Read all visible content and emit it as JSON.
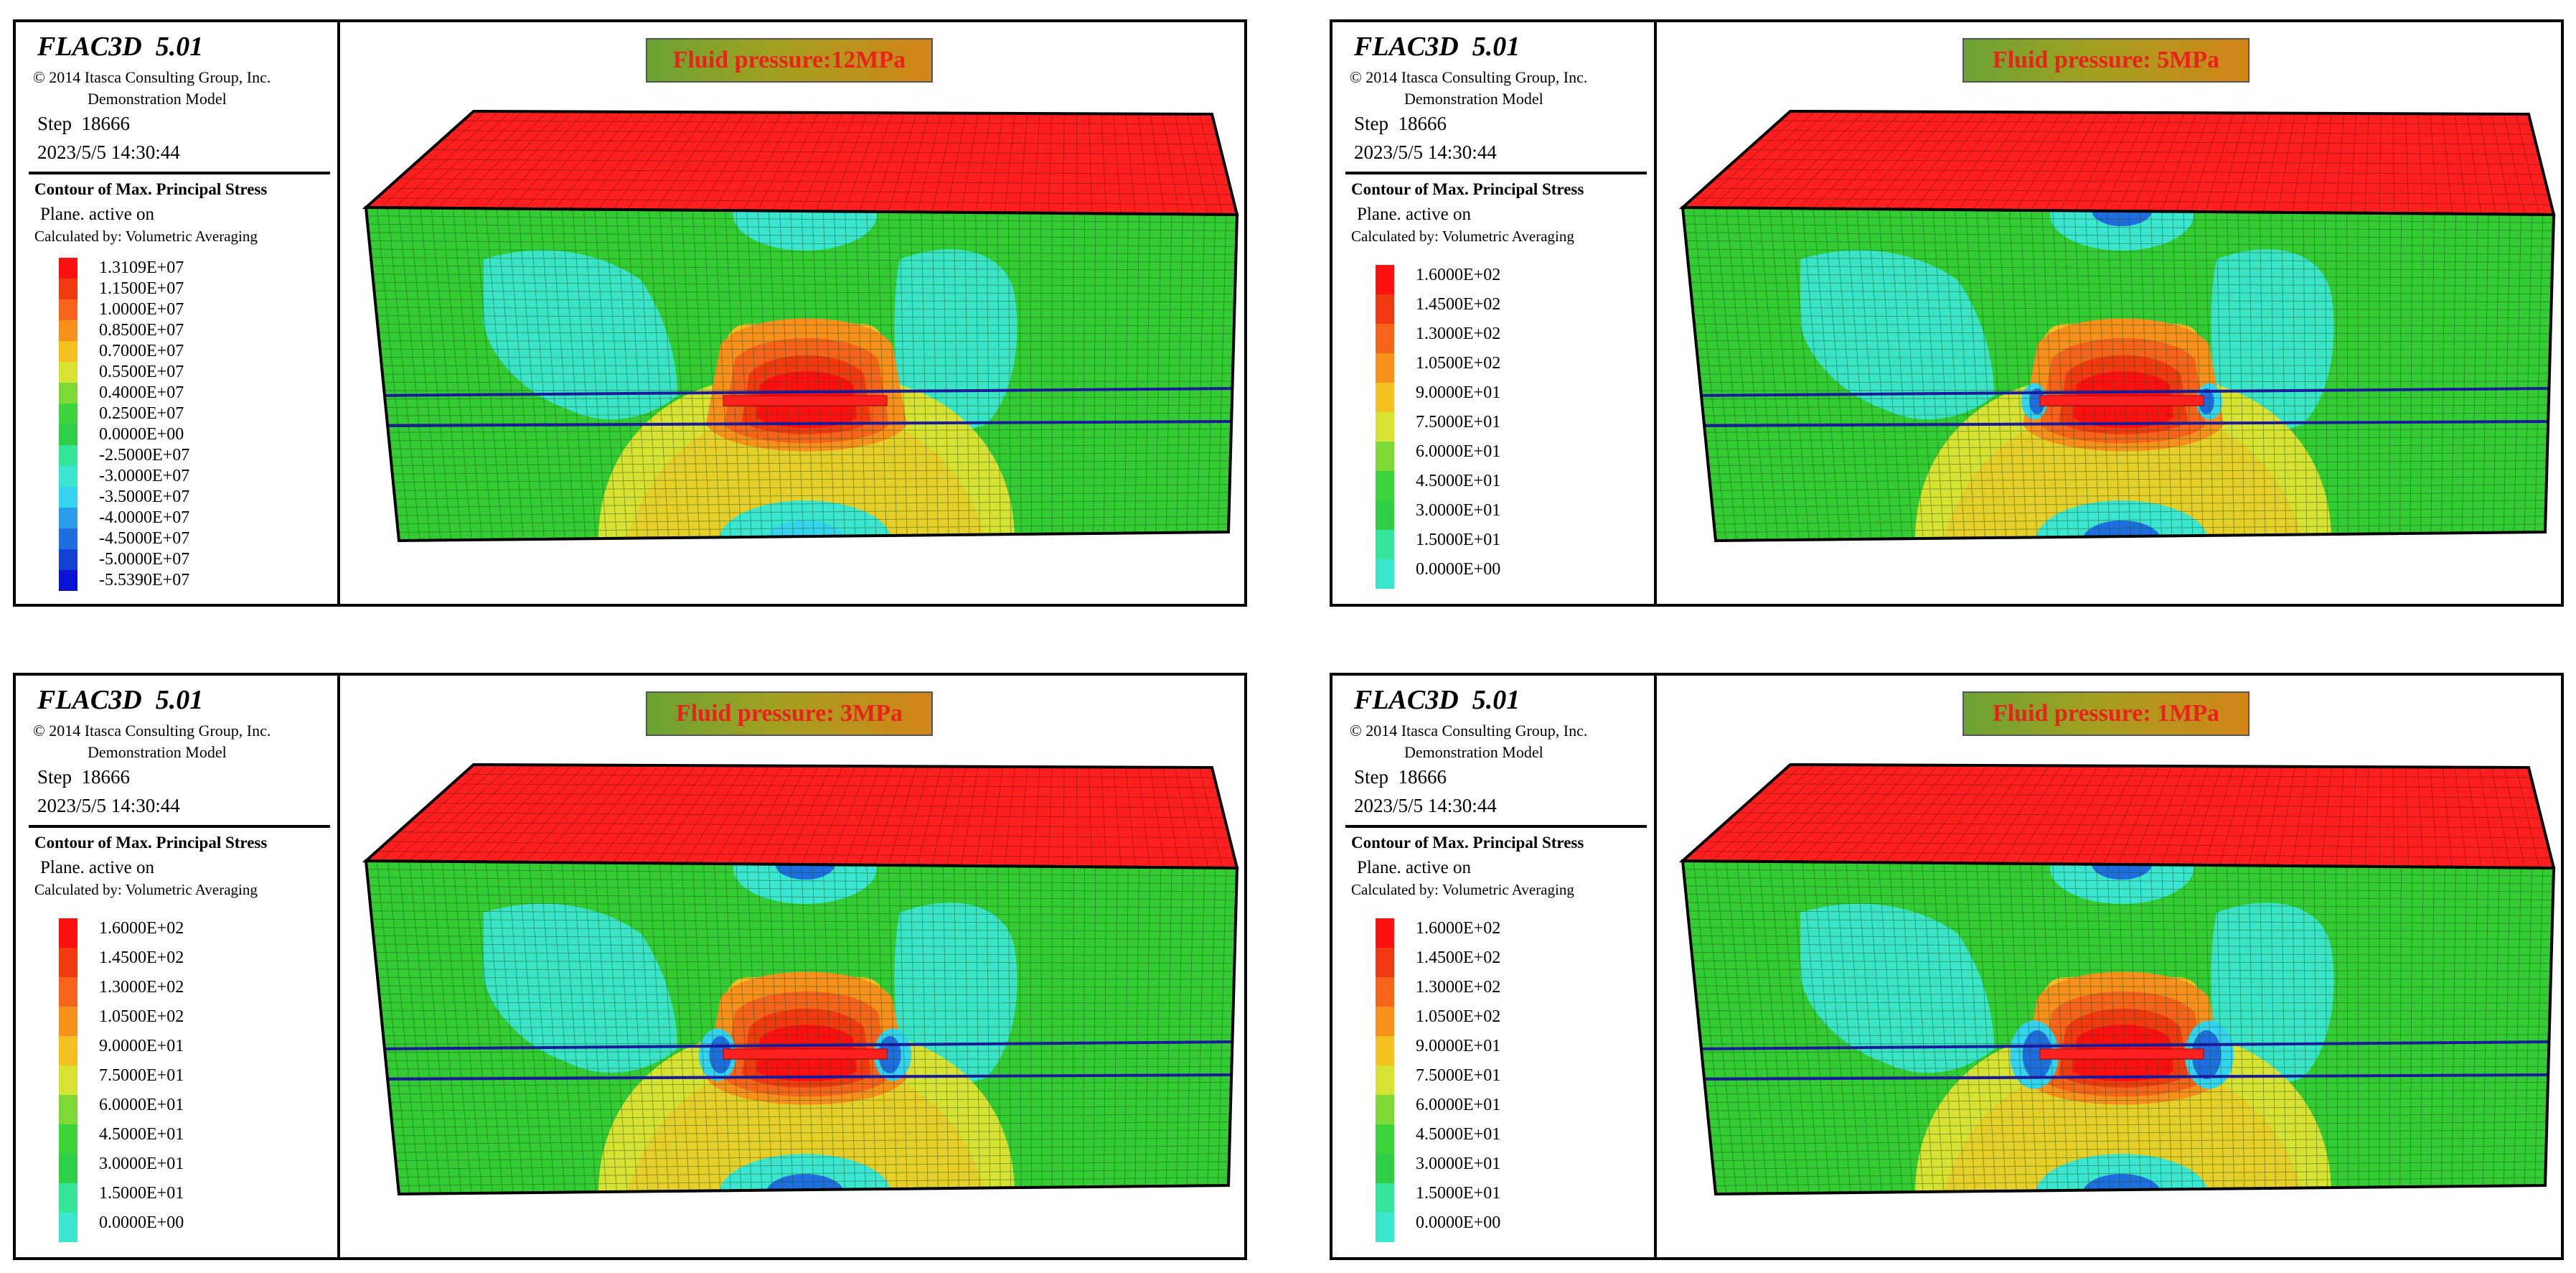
{
  "panels": [
    {
      "app_title": "FLAC3D  5.01",
      "copyright": "© 2014 Itasca Consulting Group, Inc.",
      "model": "Demonstration Model",
      "step": "Step  18666",
      "date": "2023/5/5 14:30:44",
      "contour_title": "Contour of Max. Principal Stress",
      "plane": "Plane. active on",
      "calculated": "Calculated by: Volumetric Averaging",
      "fluid_pressure": "Fluid pressure:12MPa",
      "legend": [
        {
          "label": "1.3109E+07",
          "color": "#ff1010"
        },
        {
          "label": "1.1500E+07",
          "color": "#f23a10"
        },
        {
          "label": "1.0000E+07",
          "color": "#f5641a"
        },
        {
          "label": "0.8500E+07",
          "color": "#f8901c"
        },
        {
          "label": "0.7000E+07",
          "color": "#f3c020"
        },
        {
          "label": "0.5500E+07",
          "color": "#d8e232"
        },
        {
          "label": "0.4000E+07",
          "color": "#7ed836"
        },
        {
          "label": "0.2500E+07",
          "color": "#3cd43a"
        },
        {
          "label": "0.0000E+00",
          "color": "#2ece46"
        },
        {
          "label": "-2.5000E+07",
          "color": "#35e69a"
        },
        {
          "label": "-3.0000E+07",
          "color": "#3ae6cf"
        },
        {
          "label": "-3.5000E+07",
          "color": "#35d4ee"
        },
        {
          "label": "-4.0000E+07",
          "color": "#2a9cec"
        },
        {
          "label": "-4.5000E+07",
          "color": "#1e6ee0"
        },
        {
          "label": "-5.0000E+07",
          "color": "#1440d6"
        },
        {
          "label": "-5.5390E+07",
          "color": "#0a12d4"
        }
      ]
    },
    {
      "app_title": "FLAC3D  5.01",
      "copyright": "© 2014 Itasca Consulting Group, Inc.",
      "model": "Demonstration Model",
      "step": "Step  18666",
      "date": "2023/5/5 14:30:44",
      "contour_title": "Contour of Max. Principal Stress",
      "plane": "Plane. active on",
      "calculated": "Calculated by: Volumetric Averaging",
      "fluid_pressure": "Fluid pressure: 5MPa",
      "legend": [
        {
          "label": "1.6000E+02",
          "color": "#ff1010"
        },
        {
          "label": "1.4500E+02",
          "color": "#f23a10"
        },
        {
          "label": "1.3000E+02",
          "color": "#f5641a"
        },
        {
          "label": "1.0500E+02",
          "color": "#f8901c"
        },
        {
          "label": "9.0000E+01",
          "color": "#f3c020"
        },
        {
          "label": "7.5000E+01",
          "color": "#d8e232"
        },
        {
          "label": "6.0000E+01",
          "color": "#7ed836"
        },
        {
          "label": "4.5000E+01",
          "color": "#3cd43a"
        },
        {
          "label": "3.0000E+01",
          "color": "#2ece46"
        },
        {
          "label": "1.5000E+01",
          "color": "#35e69a"
        },
        {
          "label": "0.0000E+00",
          "color": "#3ae6cf"
        }
      ]
    },
    {
      "app_title": "FLAC3D  5.01",
      "copyright": "© 2014 Itasca Consulting Group, Inc.",
      "model": "Demonstration Model",
      "step": "Step  18666",
      "date": "2023/5/5 14:30:44",
      "contour_title": "Contour of Max. Principal Stress",
      "plane": "Plane. active on",
      "calculated": "Calculated by: Volumetric Averaging",
      "fluid_pressure": "Fluid pressure: 3MPa",
      "legend": [
        {
          "label": "1.6000E+02",
          "color": "#ff1010"
        },
        {
          "label": "1.4500E+02",
          "color": "#f23a10"
        },
        {
          "label": "1.3000E+02",
          "color": "#f5641a"
        },
        {
          "label": "1.0500E+02",
          "color": "#f8901c"
        },
        {
          "label": "9.0000E+01",
          "color": "#f3c020"
        },
        {
          "label": "7.5000E+01",
          "color": "#d8e232"
        },
        {
          "label": "6.0000E+01",
          "color": "#7ed836"
        },
        {
          "label": "4.5000E+01",
          "color": "#3cd43a"
        },
        {
          "label": "3.0000E+01",
          "color": "#2ece46"
        },
        {
          "label": "1.5000E+01",
          "color": "#35e69a"
        },
        {
          "label": "0.0000E+00",
          "color": "#3ae6cf"
        }
      ]
    },
    {
      "app_title": "FLAC3D  5.01",
      "copyright": "© 2014 Itasca Consulting Group, Inc.",
      "model": "Demonstration Model",
      "step": "Step  18666",
      "date": "2023/5/5 14:30:44",
      "contour_title": "Contour of Max. Principal Stress",
      "plane": "Plane. active on",
      "calculated": "Calculated by: Volumetric Averaging",
      "fluid_pressure": "Fluid pressure: 1MPa",
      "legend": [
        {
          "label": "1.6000E+02",
          "color": "#ff1010"
        },
        {
          "label": "1.4500E+02",
          "color": "#f23a10"
        },
        {
          "label": "1.3000E+02",
          "color": "#f5641a"
        },
        {
          "label": "1.0500E+02",
          "color": "#f8901c"
        },
        {
          "label": "9.0000E+01",
          "color": "#f3c020"
        },
        {
          "label": "7.5000E+01",
          "color": "#d8e232"
        },
        {
          "label": "6.0000E+01",
          "color": "#7ed836"
        },
        {
          "label": "4.5000E+01",
          "color": "#3cd43a"
        },
        {
          "label": "3.0000E+01",
          "color": "#2ece46"
        },
        {
          "label": "1.5000E+01",
          "color": "#35e69a"
        },
        {
          "label": "0.0000E+00",
          "color": "#3ae6cf"
        }
      ]
    }
  ],
  "colors": {
    "model_top": "#ff1f1f",
    "model_front": "#33cc33",
    "mesh_line": "#1a4d1a",
    "layer_line": "#1a1a9a",
    "fracture": "#ff2020",
    "fp_text": "#e8231c"
  }
}
